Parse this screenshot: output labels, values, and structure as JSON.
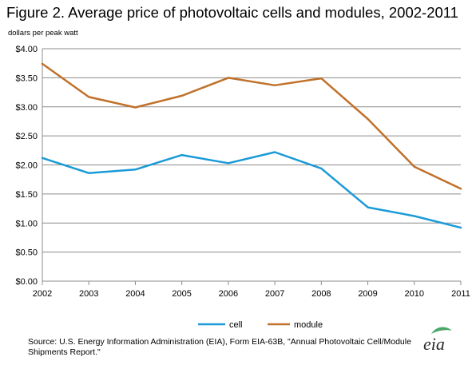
{
  "title": "Figure 2. Average price of photovoltaic cells and modules, 2002-2011",
  "unit_label": "dollars per peak watt",
  "source": "Source: U.S. Energy Information Administration (EIA), Form EIA-63B, \"Annual Photovoltaic Cell/Module Shipments Report.\"",
  "logo_text": "eia",
  "colors": {
    "cell": "#1a9ad7",
    "module": "#c0712a",
    "grid": "#8c8c8c",
    "axis": "#8c8c8c",
    "logo_leaf": "#4aa86b"
  },
  "chart_data": {
    "type": "line",
    "title": "Figure 2. Average price of photovoltaic cells and modules, 2002-2011",
    "xlabel": "",
    "ylabel": "dollars per peak watt",
    "categories": [
      "2002",
      "2003",
      "2004",
      "2005",
      "2006",
      "2007",
      "2008",
      "2009",
      "2010",
      "2011"
    ],
    "ylim": [
      0,
      4
    ],
    "yticks": [
      "$0.00",
      "$0.50",
      "$1.00",
      "$1.50",
      "$2.00",
      "$2.50",
      "$3.00",
      "$3.50",
      "$4.00"
    ],
    "grid": true,
    "legend": "bottom",
    "series": [
      {
        "name": "cell",
        "values": [
          2.12,
          1.86,
          1.92,
          2.17,
          2.03,
          2.22,
          1.94,
          1.27,
          1.12,
          0.92
        ]
      },
      {
        "name": "module",
        "values": [
          3.74,
          3.17,
          2.99,
          3.19,
          3.5,
          3.37,
          3.49,
          2.79,
          1.97,
          1.59
        ]
      }
    ]
  }
}
